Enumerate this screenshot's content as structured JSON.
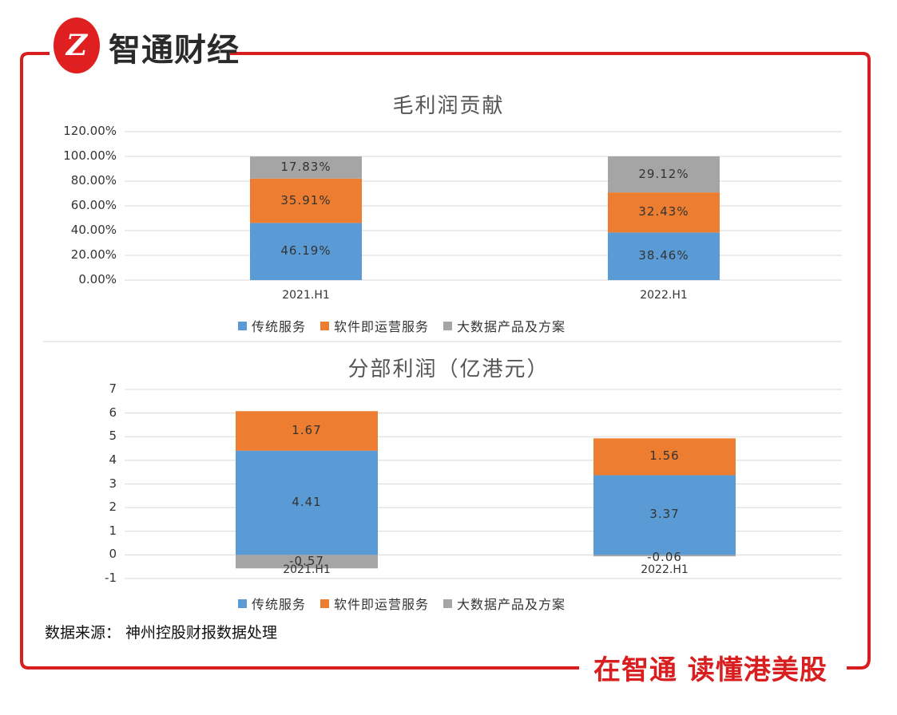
{
  "brand": {
    "logo_mark": "Z",
    "logo_text": "智通财经",
    "accent": "#d81e1e"
  },
  "slogan": "在智通  读懂港美股",
  "source": "数据来源： 神州控股财报数据处理",
  "legend_labels": [
    "传统服务",
    "软件即运营服务",
    "大数据产品及方案"
  ],
  "chart_data": [
    {
      "type": "bar",
      "stacked": true,
      "title": "毛利润贡献",
      "categories": [
        "2021.H1",
        "2022.H1"
      ],
      "ylim": [
        0,
        120
      ],
      "yticks": [
        "120.00%",
        "100.00%",
        "80.00%",
        "60.00%",
        "40.00%",
        "20.00%",
        "0.00%"
      ],
      "series": [
        {
          "name": "传统服务",
          "color": "#5b9bd5",
          "values": [
            46.19,
            38.46
          ],
          "labels": [
            "46.19%",
            "38.46%"
          ]
        },
        {
          "name": "软件即运营服务",
          "color": "#ed7d31",
          "values": [
            35.91,
            32.43
          ],
          "labels": [
            "35.91%",
            "32.43%"
          ]
        },
        {
          "name": "大数据产品及方案",
          "color": "#a5a5a5",
          "values": [
            17.83,
            29.12
          ],
          "labels": [
            "17.83%",
            "29.12%"
          ]
        }
      ],
      "grid": true,
      "legend": "bottom"
    },
    {
      "type": "bar",
      "stacked": true,
      "title": "分部利润（亿港元）",
      "categories": [
        "2021.H1",
        "2022.H1"
      ],
      "ylim": [
        -1,
        7
      ],
      "yticks": [
        "7",
        "6",
        "5",
        "4",
        "3",
        "2",
        "1",
        "0",
        "-1"
      ],
      "series": [
        {
          "name": "传统服务",
          "color": "#5b9bd5",
          "values": [
            4.41,
            3.37
          ],
          "labels": [
            "4.41",
            "3.37"
          ]
        },
        {
          "name": "软件即运营服务",
          "color": "#ed7d31",
          "values": [
            1.67,
            1.56
          ],
          "labels": [
            "1.67",
            "1.56"
          ]
        },
        {
          "name": "大数据产品及方案",
          "color": "#a5a5a5",
          "values": [
            -0.57,
            -0.06
          ],
          "labels": [
            "-0.57",
            "-0.06"
          ]
        }
      ],
      "grid": true,
      "legend": "bottom"
    }
  ]
}
